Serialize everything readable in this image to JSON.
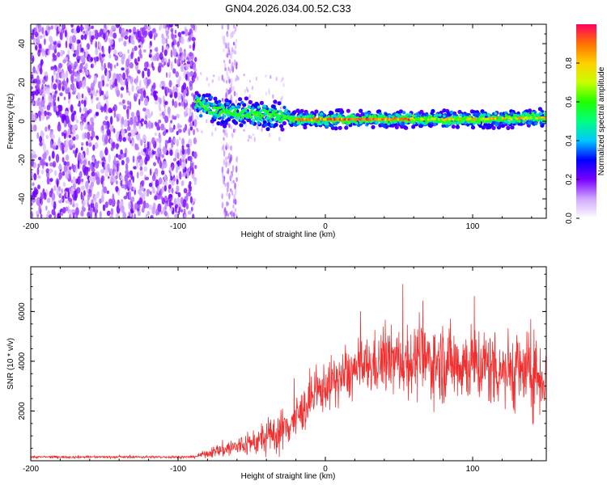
{
  "title": "GN04.2026.034.00.52.C33",
  "colors": {
    "frame": "#000000",
    "snr_line": "#f03030",
    "noise": "#7a28f0"
  },
  "chart_data": [
    {
      "type": "heatmap",
      "name": "spectrogram",
      "xlabel": "Height of straight line (km)",
      "ylabel": "Frequency (Hz)",
      "xlim": [
        -200,
        150
      ],
      "ylim": [
        -50,
        50
      ],
      "xticks": [
        -200,
        -100,
        0,
        100
      ],
      "yticks": [
        -40,
        -20,
        0,
        20,
        40
      ],
      "colorbar": {
        "label": "Normalized spectral amplitude",
        "range": [
          0,
          1
        ],
        "ticks": [
          0.0,
          0.2,
          0.4,
          0.6,
          0.8
        ]
      },
      "description_points": {
        "noise_region_x": [
          -200,
          -88
        ],
        "noise_streak_x": [
          -70,
          -60
        ],
        "signal_start_x": -88,
        "signal_center_freq": [
          {
            "x": -88,
            "f": 9
          },
          {
            "x": -80,
            "f": 7
          },
          {
            "x": -70,
            "f": 5
          },
          {
            "x": -50,
            "f": 4
          },
          {
            "x": -30,
            "f": 3
          },
          {
            "x": -20,
            "f": 1
          },
          {
            "x": 0,
            "f": 1
          },
          {
            "x": 50,
            "f": 1
          },
          {
            "x": 100,
            "f": 1
          },
          {
            "x": 150,
            "f": 2
          }
        ]
      }
    },
    {
      "type": "line",
      "name": "snr",
      "xlabel": "Height of straight line (km)",
      "ylabel": "SNR (10 * v/v)",
      "xlim": [
        -200,
        150
      ],
      "ylim": [
        0,
        7800
      ],
      "xticks": [
        -200,
        -100,
        0,
        100
      ],
      "yticks": [
        2000,
        4000,
        6000
      ],
      "envelope": [
        {
          "x": -200,
          "mean": 150,
          "spread": 60
        },
        {
          "x": -90,
          "mean": 150,
          "spread": 60
        },
        {
          "x": -80,
          "mean": 300,
          "spread": 200
        },
        {
          "x": -65,
          "mean": 500,
          "spread": 500
        },
        {
          "x": -50,
          "mean": 700,
          "spread": 600
        },
        {
          "x": -40,
          "mean": 900,
          "spread": 900
        },
        {
          "x": -30,
          "mean": 1200,
          "spread": 1100
        },
        {
          "x": -20,
          "mean": 1700,
          "spread": 1100
        },
        {
          "x": -10,
          "mean": 2400,
          "spread": 1100
        },
        {
          "x": 0,
          "mean": 3000,
          "spread": 1200
        },
        {
          "x": 20,
          "mean": 3600,
          "spread": 1400
        },
        {
          "x": 40,
          "mean": 4000,
          "spread": 1600
        },
        {
          "x": 70,
          "mean": 4000,
          "spread": 1900
        },
        {
          "x": 100,
          "mean": 3900,
          "spread": 2000
        },
        {
          "x": 130,
          "mean": 3600,
          "spread": 2000
        },
        {
          "x": 150,
          "mean": 3400,
          "spread": 2000
        }
      ]
    }
  ]
}
